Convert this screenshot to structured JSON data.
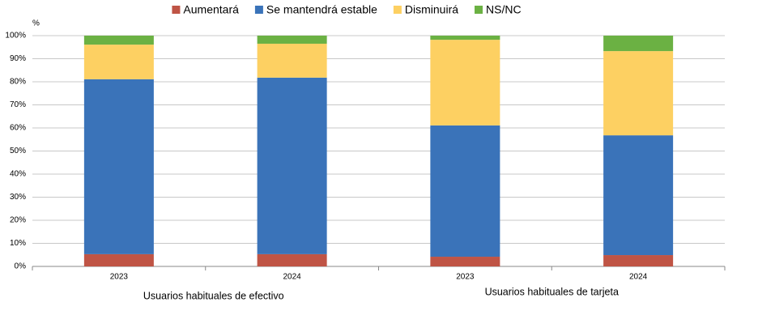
{
  "chart_data": {
    "type": "stacked_bar",
    "y_unit_label": "%",
    "categories": [
      "2023",
      "2024",
      "2023",
      "2024"
    ],
    "group_labels": [
      "Usuarios habituales de efectivo",
      "Usuarios habituales de tarjeta"
    ],
    "series": [
      {
        "name": "Aumentará",
        "color": "#bf5445",
        "values": [
          5.3,
          5.3,
          4.2,
          4.9
        ]
      },
      {
        "name": "Se mantendrá estable",
        "color": "#3a73b9",
        "values": [
          75.8,
          76.5,
          56.9,
          51.9
        ]
      },
      {
        "name": "Disminuirá",
        "color": "#fdd062",
        "values": [
          15.0,
          14.7,
          37.1,
          36.5
        ]
      },
      {
        "name": "NS/NC",
        "color": "#6bb143",
        "values": [
          3.9,
          3.5,
          1.8,
          6.7
        ]
      }
    ],
    "ylim": [
      0,
      100
    ],
    "yticks": [
      {
        "value": 0,
        "label": "0%"
      },
      {
        "value": 10,
        "label": "10%"
      },
      {
        "value": 20,
        "label": "20%"
      },
      {
        "value": 30,
        "label": "30%"
      },
      {
        "value": 40,
        "label": "40%"
      },
      {
        "value": 50,
        "label": "50%"
      },
      {
        "value": 60,
        "label": "60%"
      },
      {
        "value": 70,
        "label": "70%"
      },
      {
        "value": 80,
        "label": "80%"
      },
      {
        "value": 90,
        "label": "90%"
      },
      {
        "value": 100,
        "label": "100%"
      }
    ],
    "grid": true
  }
}
